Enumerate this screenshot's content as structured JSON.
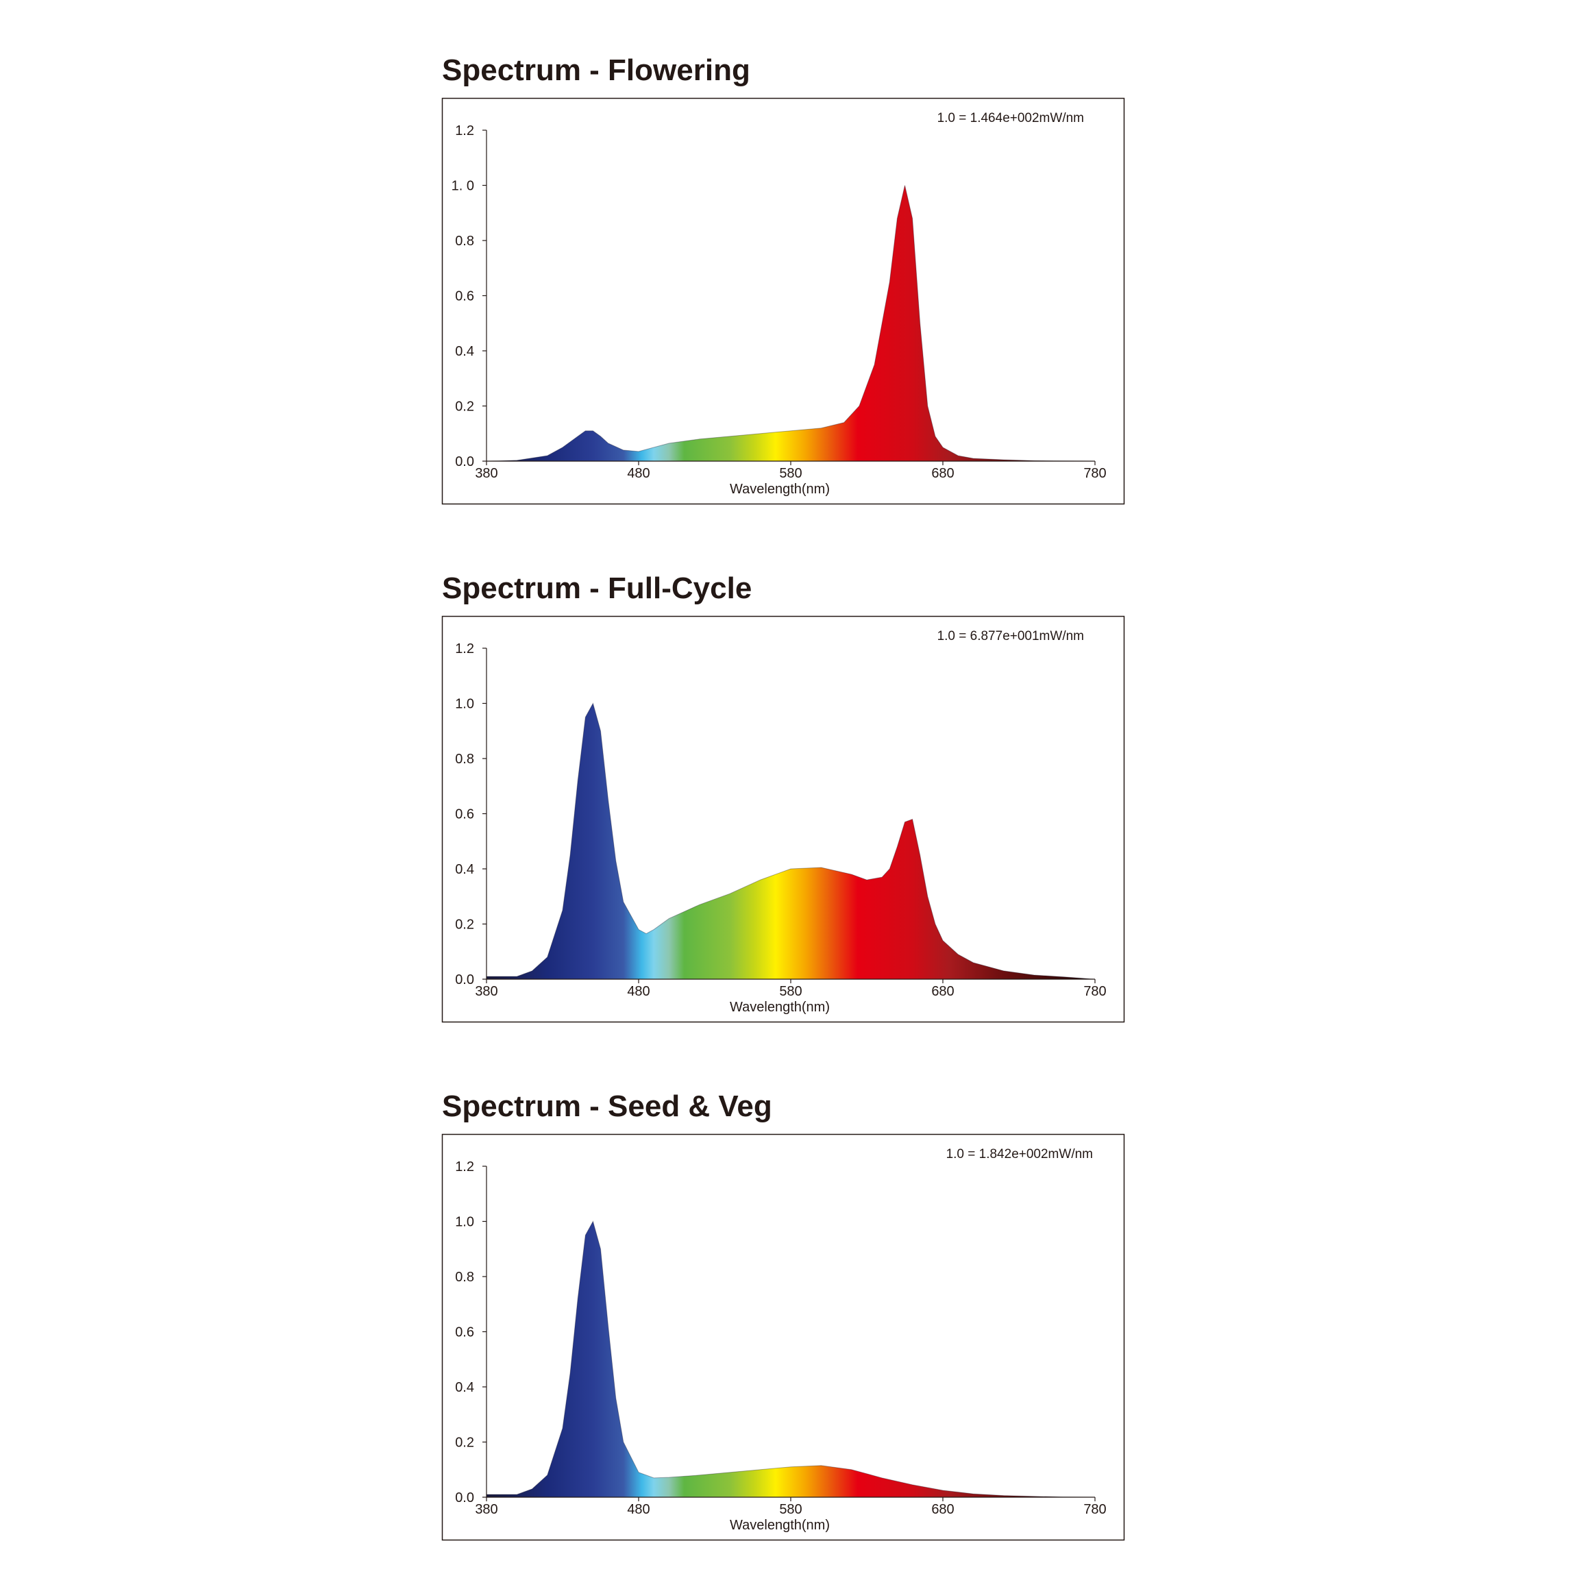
{
  "chart_data": [
    {
      "type": "area",
      "title": "Spectrum - Flowering",
      "annotation": "1.0 = 1.464e+002mW/nm",
      "xlabel": "Wavelength(nm)",
      "ylabel": "",
      "xlim": [
        380,
        780
      ],
      "ylim": [
        0,
        1.2
      ],
      "xticks": [
        "380",
        "480",
        "580",
        "680",
        "780"
      ],
      "yticks": [
        "0.0",
        "0.2",
        "0.4",
        "0.6",
        "0.8",
        "1. 0",
        "1.2"
      ],
      "grid": false,
      "x": [
        380,
        400,
        420,
        430,
        440,
        445,
        450,
        455,
        460,
        470,
        480,
        490,
        500,
        520,
        540,
        560,
        580,
        600,
        615,
        625,
        635,
        645,
        650,
        655,
        660,
        665,
        670,
        675,
        680,
        690,
        700,
        720,
        740,
        760,
        780
      ],
      "y": [
        0.0,
        0.003,
        0.02,
        0.05,
        0.09,
        0.11,
        0.11,
        0.09,
        0.065,
        0.04,
        0.035,
        0.05,
        0.065,
        0.08,
        0.09,
        0.1,
        0.11,
        0.12,
        0.14,
        0.2,
        0.35,
        0.65,
        0.88,
        1.0,
        0.88,
        0.5,
        0.2,
        0.09,
        0.05,
        0.02,
        0.01,
        0.005,
        0.002,
        0.001,
        0.0
      ]
    },
    {
      "type": "area",
      "title": "Spectrum - Full-Cycle",
      "annotation": "1.0 = 6.877e+001mW/nm",
      "xlabel": "Wavelength(nm)",
      "ylabel": "",
      "xlim": [
        380,
        780
      ],
      "ylim": [
        0,
        1.2
      ],
      "xticks": [
        "380",
        "480",
        "580",
        "680",
        "780"
      ],
      "yticks": [
        "0.0",
        "0.2",
        "0.4",
        "0.6",
        "0.8",
        "1.0",
        "1.2"
      ],
      "grid": false,
      "x": [
        380,
        400,
        410,
        420,
        430,
        435,
        440,
        445,
        450,
        455,
        460,
        465,
        470,
        480,
        485,
        490,
        500,
        520,
        540,
        560,
        580,
        600,
        620,
        630,
        640,
        645,
        650,
        655,
        660,
        665,
        670,
        675,
        680,
        690,
        700,
        720,
        740,
        760,
        780
      ],
      "y": [
        0.01,
        0.01,
        0.03,
        0.08,
        0.25,
        0.45,
        0.72,
        0.95,
        1.0,
        0.9,
        0.65,
        0.43,
        0.28,
        0.18,
        0.165,
        0.18,
        0.22,
        0.27,
        0.31,
        0.36,
        0.4,
        0.405,
        0.38,
        0.36,
        0.37,
        0.4,
        0.48,
        0.57,
        0.58,
        0.45,
        0.3,
        0.2,
        0.14,
        0.09,
        0.06,
        0.03,
        0.015,
        0.008,
        0.0
      ]
    },
    {
      "type": "area",
      "title": "Spectrum - Seed & Veg",
      "annotation": "1.0 = 1.842e+002mW/nm",
      "xlabel": "Wavelength(nm)",
      "ylabel": "",
      "xlim": [
        380,
        780
      ],
      "ylim": [
        0,
        1.2
      ],
      "xticks": [
        "380",
        "480",
        "580",
        "680",
        "780"
      ],
      "yticks": [
        "0.0",
        "0.2",
        "0.4",
        "0.6",
        "0.8",
        "1.0",
        "1.2"
      ],
      "grid": false,
      "x": [
        380,
        400,
        410,
        420,
        430,
        435,
        440,
        445,
        450,
        455,
        460,
        465,
        470,
        480,
        490,
        500,
        520,
        540,
        560,
        580,
        600,
        620,
        640,
        660,
        680,
        700,
        720,
        740,
        760,
        780
      ],
      "y": [
        0.01,
        0.01,
        0.03,
        0.08,
        0.25,
        0.45,
        0.72,
        0.95,
        1.0,
        0.9,
        0.62,
        0.36,
        0.2,
        0.09,
        0.07,
        0.072,
        0.08,
        0.09,
        0.1,
        0.11,
        0.115,
        0.1,
        0.07,
        0.045,
        0.025,
        0.012,
        0.006,
        0.003,
        0.001,
        0.0
      ]
    }
  ]
}
